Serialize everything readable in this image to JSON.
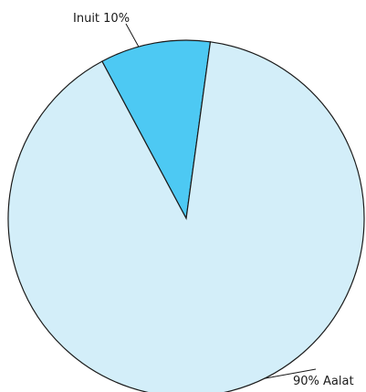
{
  "chart_data": {
    "type": "pie",
    "slices": [
      {
        "name": "Inuit",
        "value": 10,
        "label": "Inuit 10%",
        "color": "#4dc9f3"
      },
      {
        "name": "Aalat",
        "value": 90,
        "label": "90% Aalat",
        "color": "#d3eef9"
      }
    ],
    "legend": "none",
    "outline_color": "#1a1a1a"
  }
}
